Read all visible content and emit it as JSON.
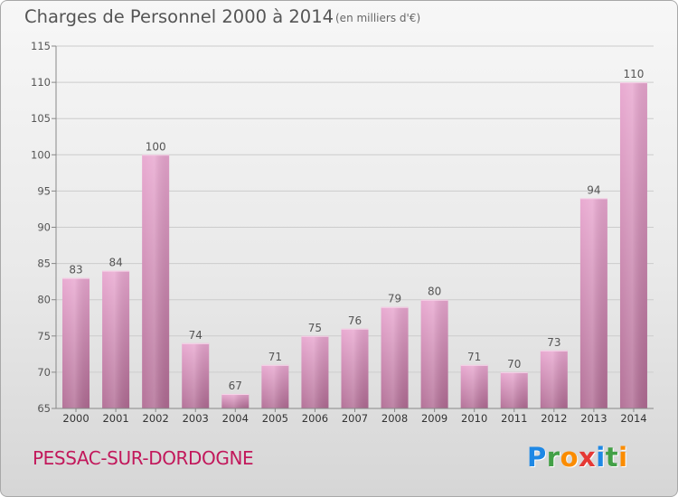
{
  "header": {
    "title": "Charges de Personnel 2000 à 2014",
    "unit": "(en milliers d'€)"
  },
  "footer": {
    "commune": "PESSAC-SUR-DORDOGNE",
    "logo_letters": [
      {
        "char": "P",
        "color": "#1e88e5"
      },
      {
        "char": "r",
        "color": "#43a047"
      },
      {
        "char": "o",
        "color": "#fb8c00"
      },
      {
        "char": "x",
        "color": "#e53935"
      },
      {
        "char": "i",
        "color": "#1e88e5"
      },
      {
        "char": "t",
        "color": "#43a047"
      },
      {
        "char": "i",
        "color": "#fb8c00"
      }
    ]
  },
  "colors": {
    "bar_light": "#e8a6cf",
    "bar_dark": "#b06b93",
    "axis": "#888888",
    "grid": "#cccccc",
    "text": "#555555"
  },
  "chart_data": {
    "type": "bar",
    "title": "Charges de Personnel 2000 à 2014",
    "subtitle": "(en milliers d'€)",
    "categories": [
      "2000",
      "2001",
      "2002",
      "2003",
      "2004",
      "2005",
      "2006",
      "2007",
      "2008",
      "2009",
      "2010",
      "2011",
      "2012",
      "2013",
      "2014"
    ],
    "values": [
      83,
      84,
      100,
      74,
      67,
      71,
      75,
      76,
      79,
      80,
      71,
      70,
      73,
      94,
      110
    ],
    "data_labels": [
      "83",
      "84",
      "100",
      "74",
      "67",
      "71",
      "75",
      "76",
      "79",
      "80",
      "71",
      "70",
      "73",
      "94",
      "110"
    ],
    "ylim": [
      65,
      115
    ],
    "yticks": [
      65,
      70,
      75,
      80,
      85,
      90,
      95,
      100,
      105,
      110,
      115
    ],
    "grid": true
  }
}
